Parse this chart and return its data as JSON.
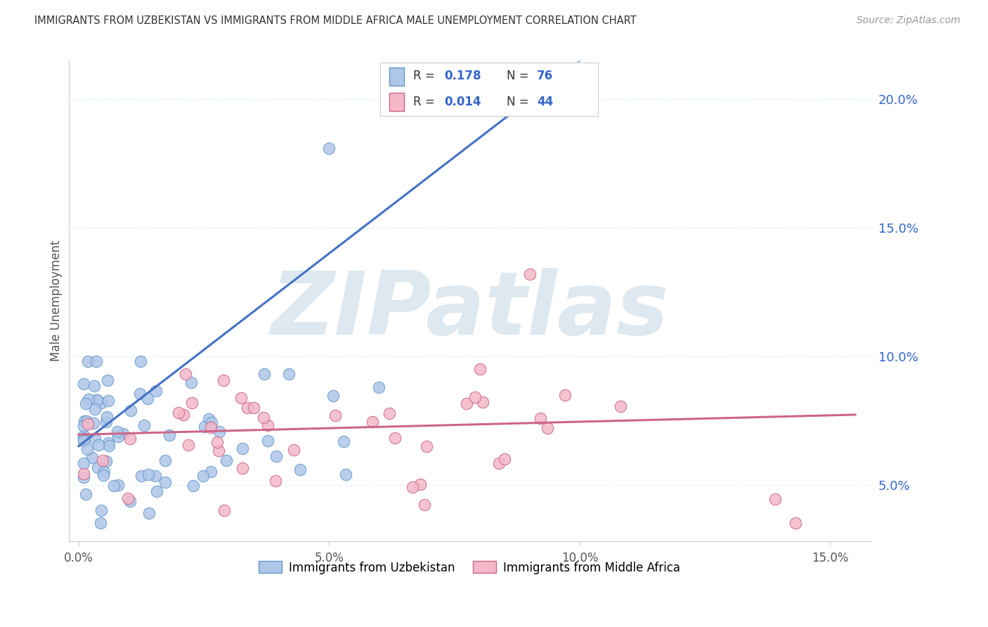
{
  "title": "IMMIGRANTS FROM UZBEKISTAN VS IMMIGRANTS FROM MIDDLE AFRICA MALE UNEMPLOYMENT CORRELATION CHART",
  "source": "Source: ZipAtlas.com",
  "ylabel": "Male Unemployment",
  "series1_label": "Immigrants from Uzbekistan",
  "series2_label": "Immigrants from Middle Africa",
  "R1": "0.178",
  "N1": "76",
  "R2": "0.014",
  "N2": "44",
  "xlim": [
    -0.002,
    0.158
  ],
  "ylim": [
    0.028,
    0.215
  ],
  "ytick_vals": [
    0.05,
    0.1,
    0.15,
    0.2
  ],
  "ytick_labels": [
    "5.0%",
    "10.0%",
    "15.0%",
    "20.0%"
  ],
  "xtick_vals": [
    0.0,
    0.05,
    0.1,
    0.15
  ],
  "xtick_labels": [
    "0.0%",
    "5.0%",
    "10.0%",
    "15.0%"
  ],
  "series1_facecolor": "#aec6e8",
  "series1_edgecolor": "#6699cc",
  "series2_facecolor": "#f4b8c8",
  "series2_edgecolor": "#cc6688",
  "trend1_color": "#4472c4",
  "trend2_color": "#cc6688",
  "trend_dash_color": "#99bbdd",
  "text_dark": "#333333",
  "val_color": "#3366cc",
  "watermark": "ZIPatlas",
  "watermark_color": "#dde8f0",
  "bg_color": "#ffffff",
  "grid_color": "#ddeeff",
  "title_color": "#333333",
  "source_color": "#999999",
  "ylabel_color": "#555555",
  "xtick_color": "#555555",
  "ytick_color": "#3366cc",
  "legend_border": "#cccccc"
}
